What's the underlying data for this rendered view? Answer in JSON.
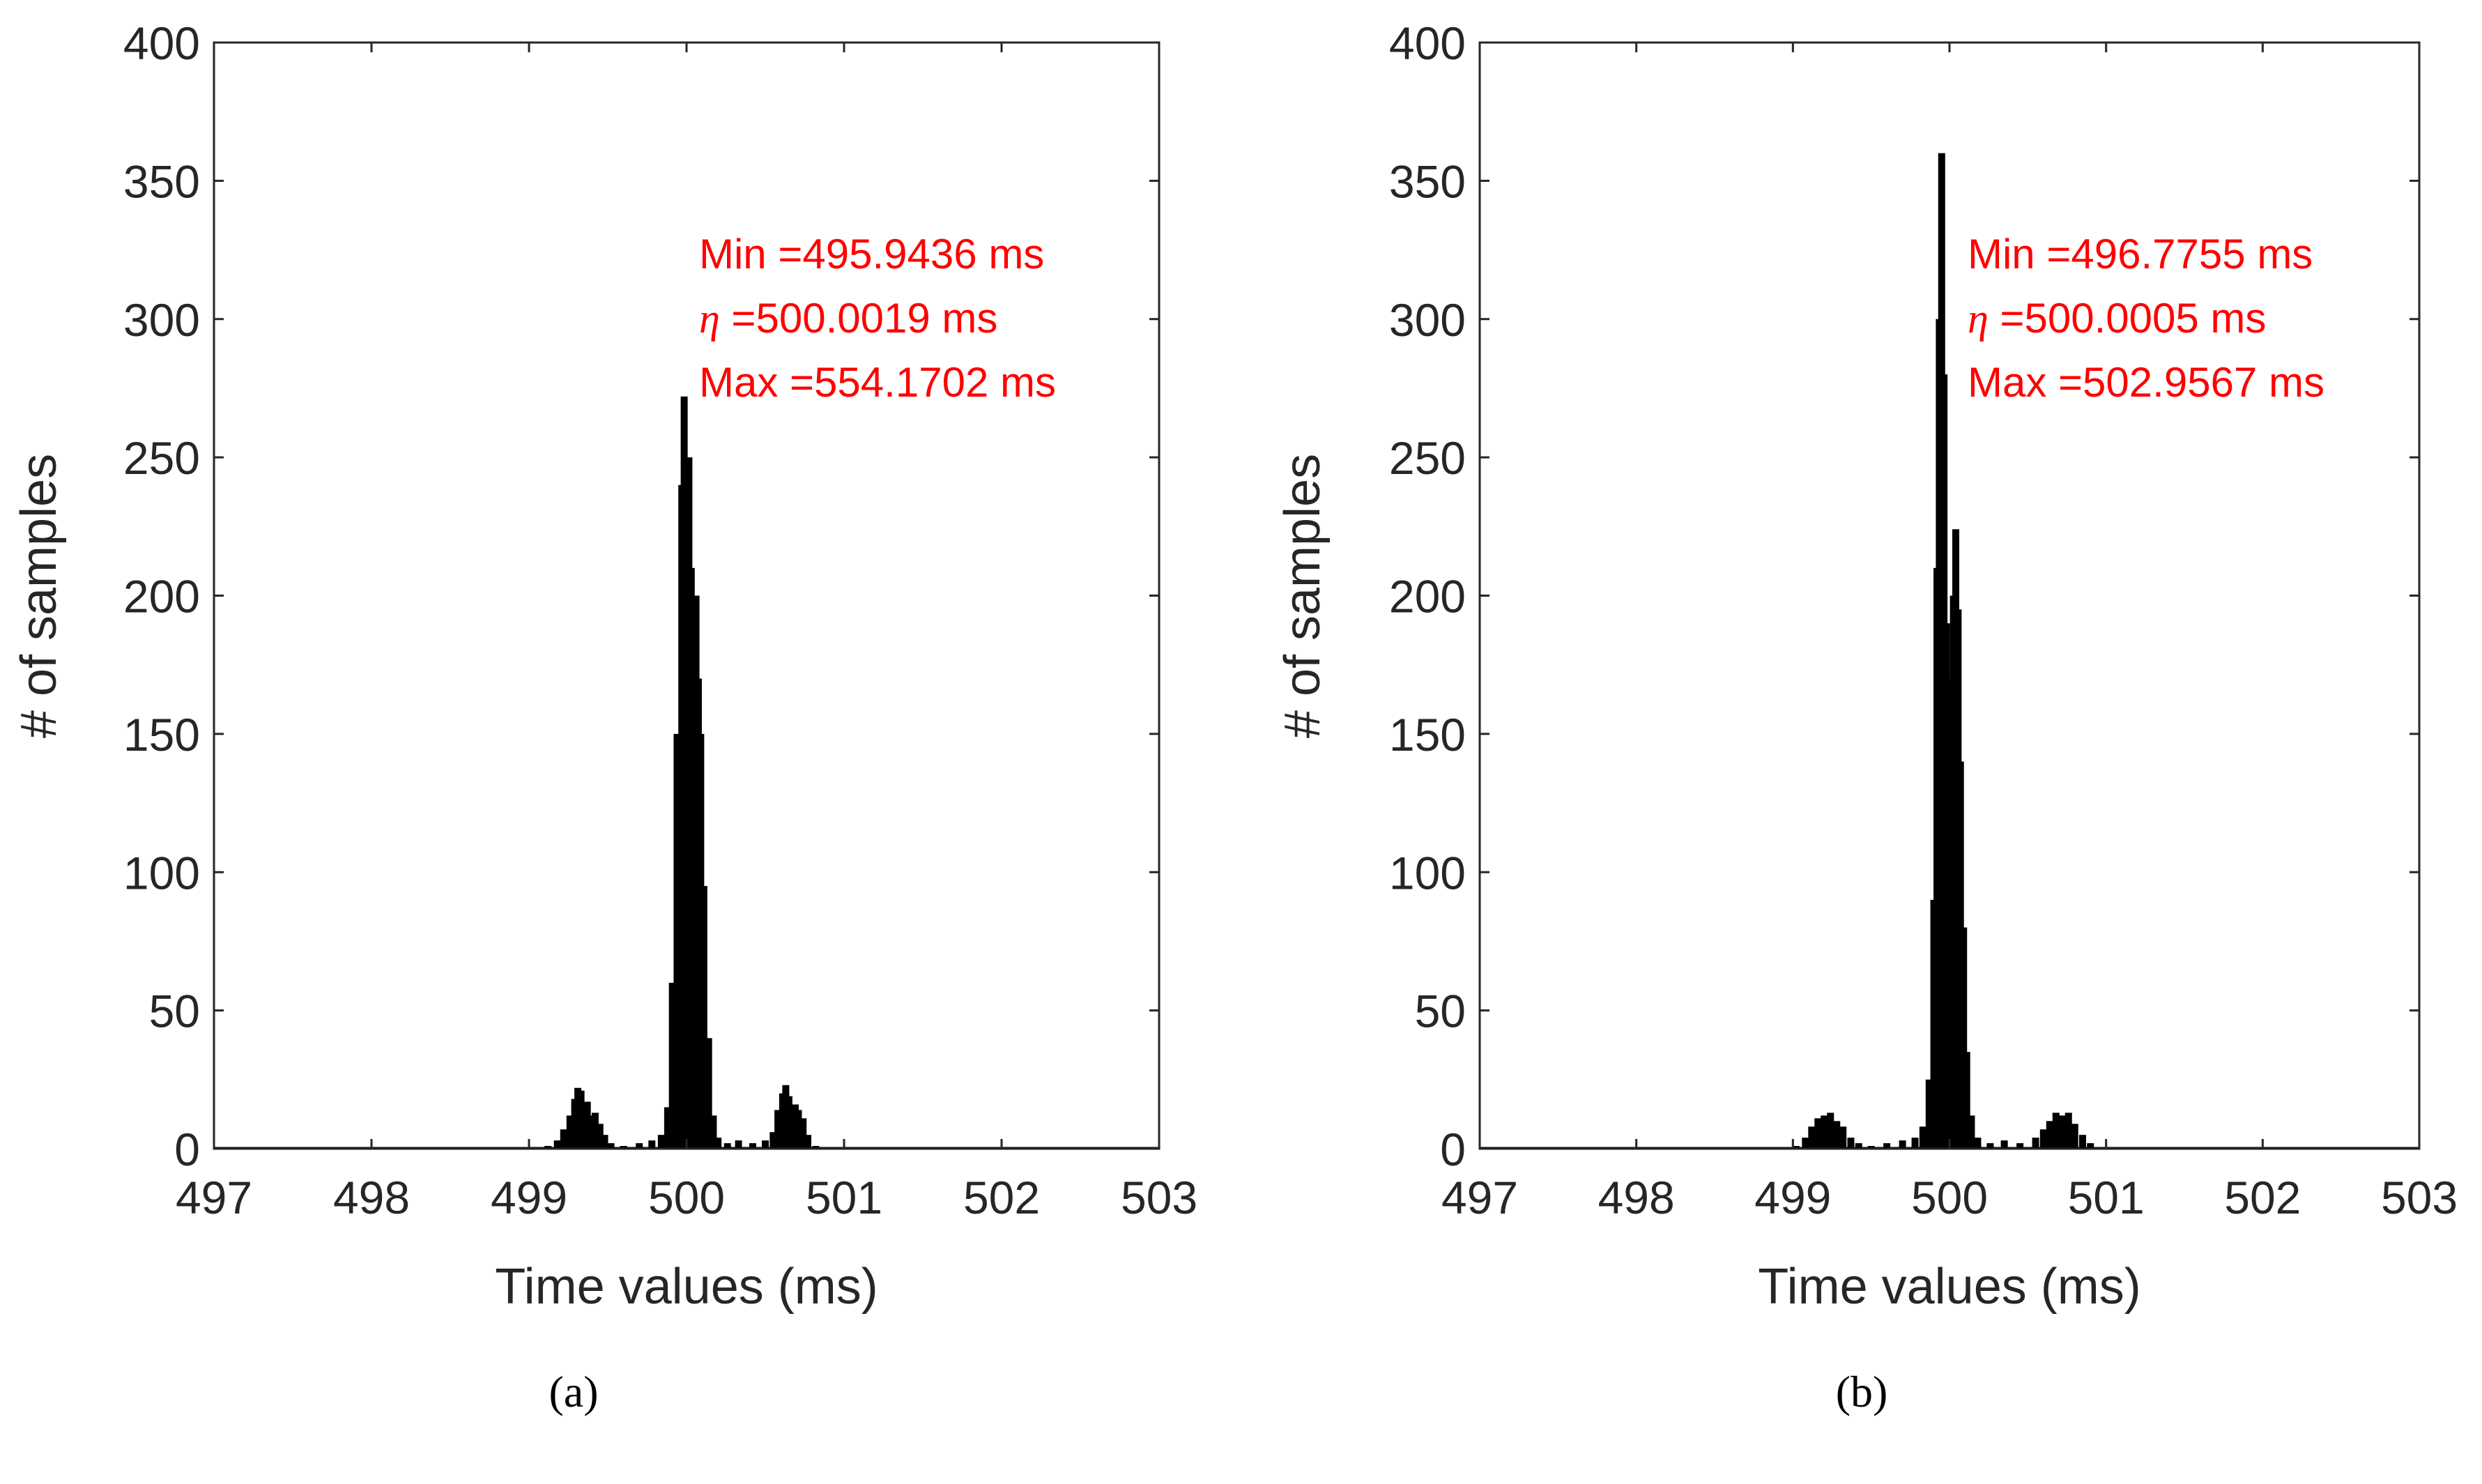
{
  "chart_data": [
    {
      "type": "bar",
      "panel_id": "a",
      "caption": "(a)",
      "title": "",
      "xlabel": "Time values (ms)",
      "ylabel": "# of samples",
      "xlim": [
        497,
        503
      ],
      "ylim": [
        0,
        400
      ],
      "xticks": [
        "497",
        "498",
        "499",
        "500",
        "501",
        "502",
        "503"
      ],
      "yticks": [
        "0",
        "50",
        "100",
        "150",
        "200",
        "250",
        "300",
        "350",
        "400"
      ],
      "annotation": {
        "min_label": "Min =495.9436 ms",
        "eta_symbol": "η",
        "eta_value": " =500.0019 ms",
        "max_label": "Max =554.1702 ms"
      },
      "bins": [
        [
          499.05,
          0
        ],
        [
          499.12,
          1
        ],
        [
          499.18,
          3
        ],
        [
          499.22,
          7
        ],
        [
          499.26,
          12
        ],
        [
          499.29,
          18
        ],
        [
          499.31,
          22
        ],
        [
          499.33,
          21
        ],
        [
          499.35,
          14
        ],
        [
          499.37,
          17
        ],
        [
          499.39,
          12
        ],
        [
          499.42,
          13
        ],
        [
          499.45,
          9
        ],
        [
          499.48,
          5
        ],
        [
          499.52,
          2
        ],
        [
          499.6,
          1
        ],
        [
          499.7,
          2
        ],
        [
          499.78,
          3
        ],
        [
          499.84,
          5
        ],
        [
          499.88,
          15
        ],
        [
          499.91,
          60
        ],
        [
          499.94,
          150
        ],
        [
          499.97,
          240
        ],
        [
          499.985,
          272
        ],
        [
          500.0,
          230
        ],
        [
          500.015,
          250
        ],
        [
          500.03,
          210
        ],
        [
          500.045,
          185
        ],
        [
          500.06,
          200
        ],
        [
          500.075,
          170
        ],
        [
          500.09,
          150
        ],
        [
          500.11,
          95
        ],
        [
          500.14,
          40
        ],
        [
          500.17,
          12
        ],
        [
          500.2,
          4
        ],
        [
          500.26,
          2
        ],
        [
          500.33,
          3
        ],
        [
          500.42,
          2
        ],
        [
          500.5,
          3
        ],
        [
          500.55,
          6
        ],
        [
          500.58,
          14
        ],
        [
          500.61,
          20
        ],
        [
          500.63,
          23
        ],
        [
          500.65,
          19
        ],
        [
          500.67,
          15
        ],
        [
          500.69,
          16
        ],
        [
          500.71,
          14
        ],
        [
          500.74,
          11
        ],
        [
          500.77,
          5
        ],
        [
          500.82,
          1
        ],
        [
          500.9,
          0
        ]
      ]
    },
    {
      "type": "bar",
      "panel_id": "b",
      "caption": "(b)",
      "title": "",
      "xlabel": "Time values (ms)",
      "ylabel": "# of samples",
      "xlim": [
        497,
        503
      ],
      "ylim": [
        0,
        400
      ],
      "xticks": [
        "497",
        "498",
        "499",
        "500",
        "501",
        "502",
        "503"
      ],
      "yticks": [
        "0",
        "50",
        "100",
        "150",
        "200",
        "250",
        "300",
        "350",
        "400"
      ],
      "annotation": {
        "min_label": "Min =496.7755 ms",
        "eta_symbol": "η",
        "eta_value": " =500.0005 ms",
        "max_label": "Max =502.9567 ms"
      },
      "bins": [
        [
          498.95,
          0
        ],
        [
          499.02,
          1
        ],
        [
          499.08,
          4
        ],
        [
          499.12,
          8
        ],
        [
          499.16,
          11
        ],
        [
          499.2,
          12
        ],
        [
          499.24,
          13
        ],
        [
          499.28,
          10
        ],
        [
          499.32,
          8
        ],
        [
          499.37,
          4
        ],
        [
          499.42,
          2
        ],
        [
          499.5,
          1
        ],
        [
          499.6,
          2
        ],
        [
          499.7,
          3
        ],
        [
          499.78,
          4
        ],
        [
          499.83,
          8
        ],
        [
          499.87,
          25
        ],
        [
          499.9,
          90
        ],
        [
          499.92,
          210
        ],
        [
          499.935,
          300
        ],
        [
          499.95,
          360
        ],
        [
          499.965,
          280
        ],
        [
          499.98,
          190
        ],
        [
          499.995,
          170
        ],
        [
          500.01,
          155
        ],
        [
          500.025,
          200
        ],
        [
          500.04,
          224
        ],
        [
          500.055,
          195
        ],
        [
          500.07,
          140
        ],
        [
          500.09,
          80
        ],
        [
          500.11,
          35
        ],
        [
          500.14,
          12
        ],
        [
          500.18,
          4
        ],
        [
          500.26,
          2
        ],
        [
          500.35,
          3
        ],
        [
          500.45,
          2
        ],
        [
          500.55,
          4
        ],
        [
          500.6,
          7
        ],
        [
          500.64,
          10
        ],
        [
          500.68,
          13
        ],
        [
          500.72,
          12
        ],
        [
          500.76,
          13
        ],
        [
          500.8,
          9
        ],
        [
          500.85,
          5
        ],
        [
          500.9,
          2
        ],
        [
          500.98,
          0
        ]
      ]
    }
  ]
}
